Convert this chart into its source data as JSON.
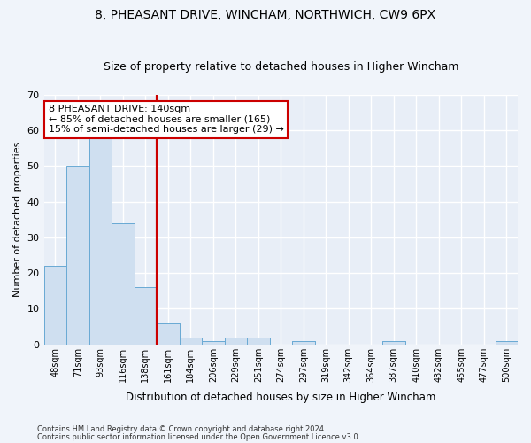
{
  "title1": "8, PHEASANT DRIVE, WINCHAM, NORTHWICH, CW9 6PX",
  "title2": "Size of property relative to detached houses in Higher Wincham",
  "xlabel": "Distribution of detached houses by size in Higher Wincham",
  "ylabel": "Number of detached properties",
  "footer1": "Contains HM Land Registry data © Crown copyright and database right 2024.",
  "footer2": "Contains public sector information licensed under the Open Government Licence v3.0.",
  "annotation_line1": "8 PHEASANT DRIVE: 140sqm",
  "annotation_line2": "← 85% of detached houses are smaller (165)",
  "annotation_line3": "15% of semi-detached houses are larger (29) →",
  "bar_color": "#cfdff0",
  "bar_edge_color": "#6aaad4",
  "vline_color": "#cc0000",
  "vline_x_index": 4,
  "categories": [
    "48sqm",
    "71sqm",
    "93sqm",
    "116sqm",
    "138sqm",
    "161sqm",
    "184sqm",
    "206sqm",
    "229sqm",
    "251sqm",
    "274sqm",
    "297sqm",
    "319sqm",
    "342sqm",
    "364sqm",
    "387sqm",
    "410sqm",
    "432sqm",
    "455sqm",
    "477sqm",
    "500sqm"
  ],
  "values": [
    22,
    50,
    58,
    34,
    16,
    6,
    2,
    1,
    2,
    2,
    0,
    1,
    0,
    0,
    0,
    1,
    0,
    0,
    0,
    0,
    1
  ],
  "ylim": [
    0,
    70
  ],
  "yticks": [
    0,
    10,
    20,
    30,
    40,
    50,
    60,
    70
  ],
  "background_color": "#f0f4fa",
  "plot_bg_color": "#e8eef7",
  "grid_color": "#ffffff",
  "title_fontsize": 10,
  "subtitle_fontsize": 9,
  "annotation_fontsize": 8,
  "annotation_box_color": "#ffffff",
  "annotation_box_edge": "#cc0000"
}
